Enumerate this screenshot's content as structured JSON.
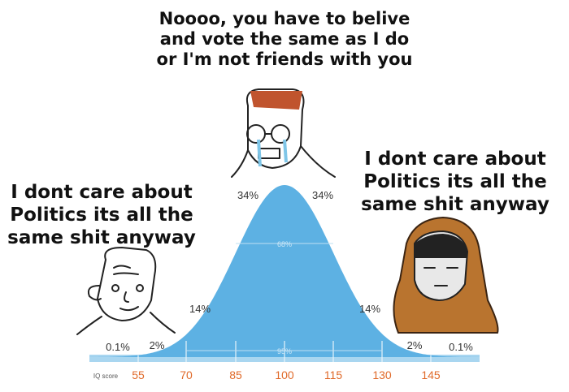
{
  "captions": {
    "top": [
      "Noooo, you have to belive",
      "and vote the same as I do",
      "or I'm not friends with you"
    ],
    "left": [
      "I dont care about",
      "Politics its all the",
      "same shit anyway"
    ],
    "right": [
      "I dont care about",
      "Politics its all the",
      "same shit anyway"
    ]
  },
  "curve": {
    "band_labels": [
      "0.1%",
      "2%",
      "14%",
      "34%",
      "34%",
      "14%",
      "2%",
      "0.1%"
    ],
    "range_labels": [
      "68%",
      "95%"
    ]
  },
  "axis": {
    "label": "IQ score",
    "ticks": [
      "55",
      "70",
      "85",
      "100",
      "115",
      "130",
      "145"
    ]
  }
}
